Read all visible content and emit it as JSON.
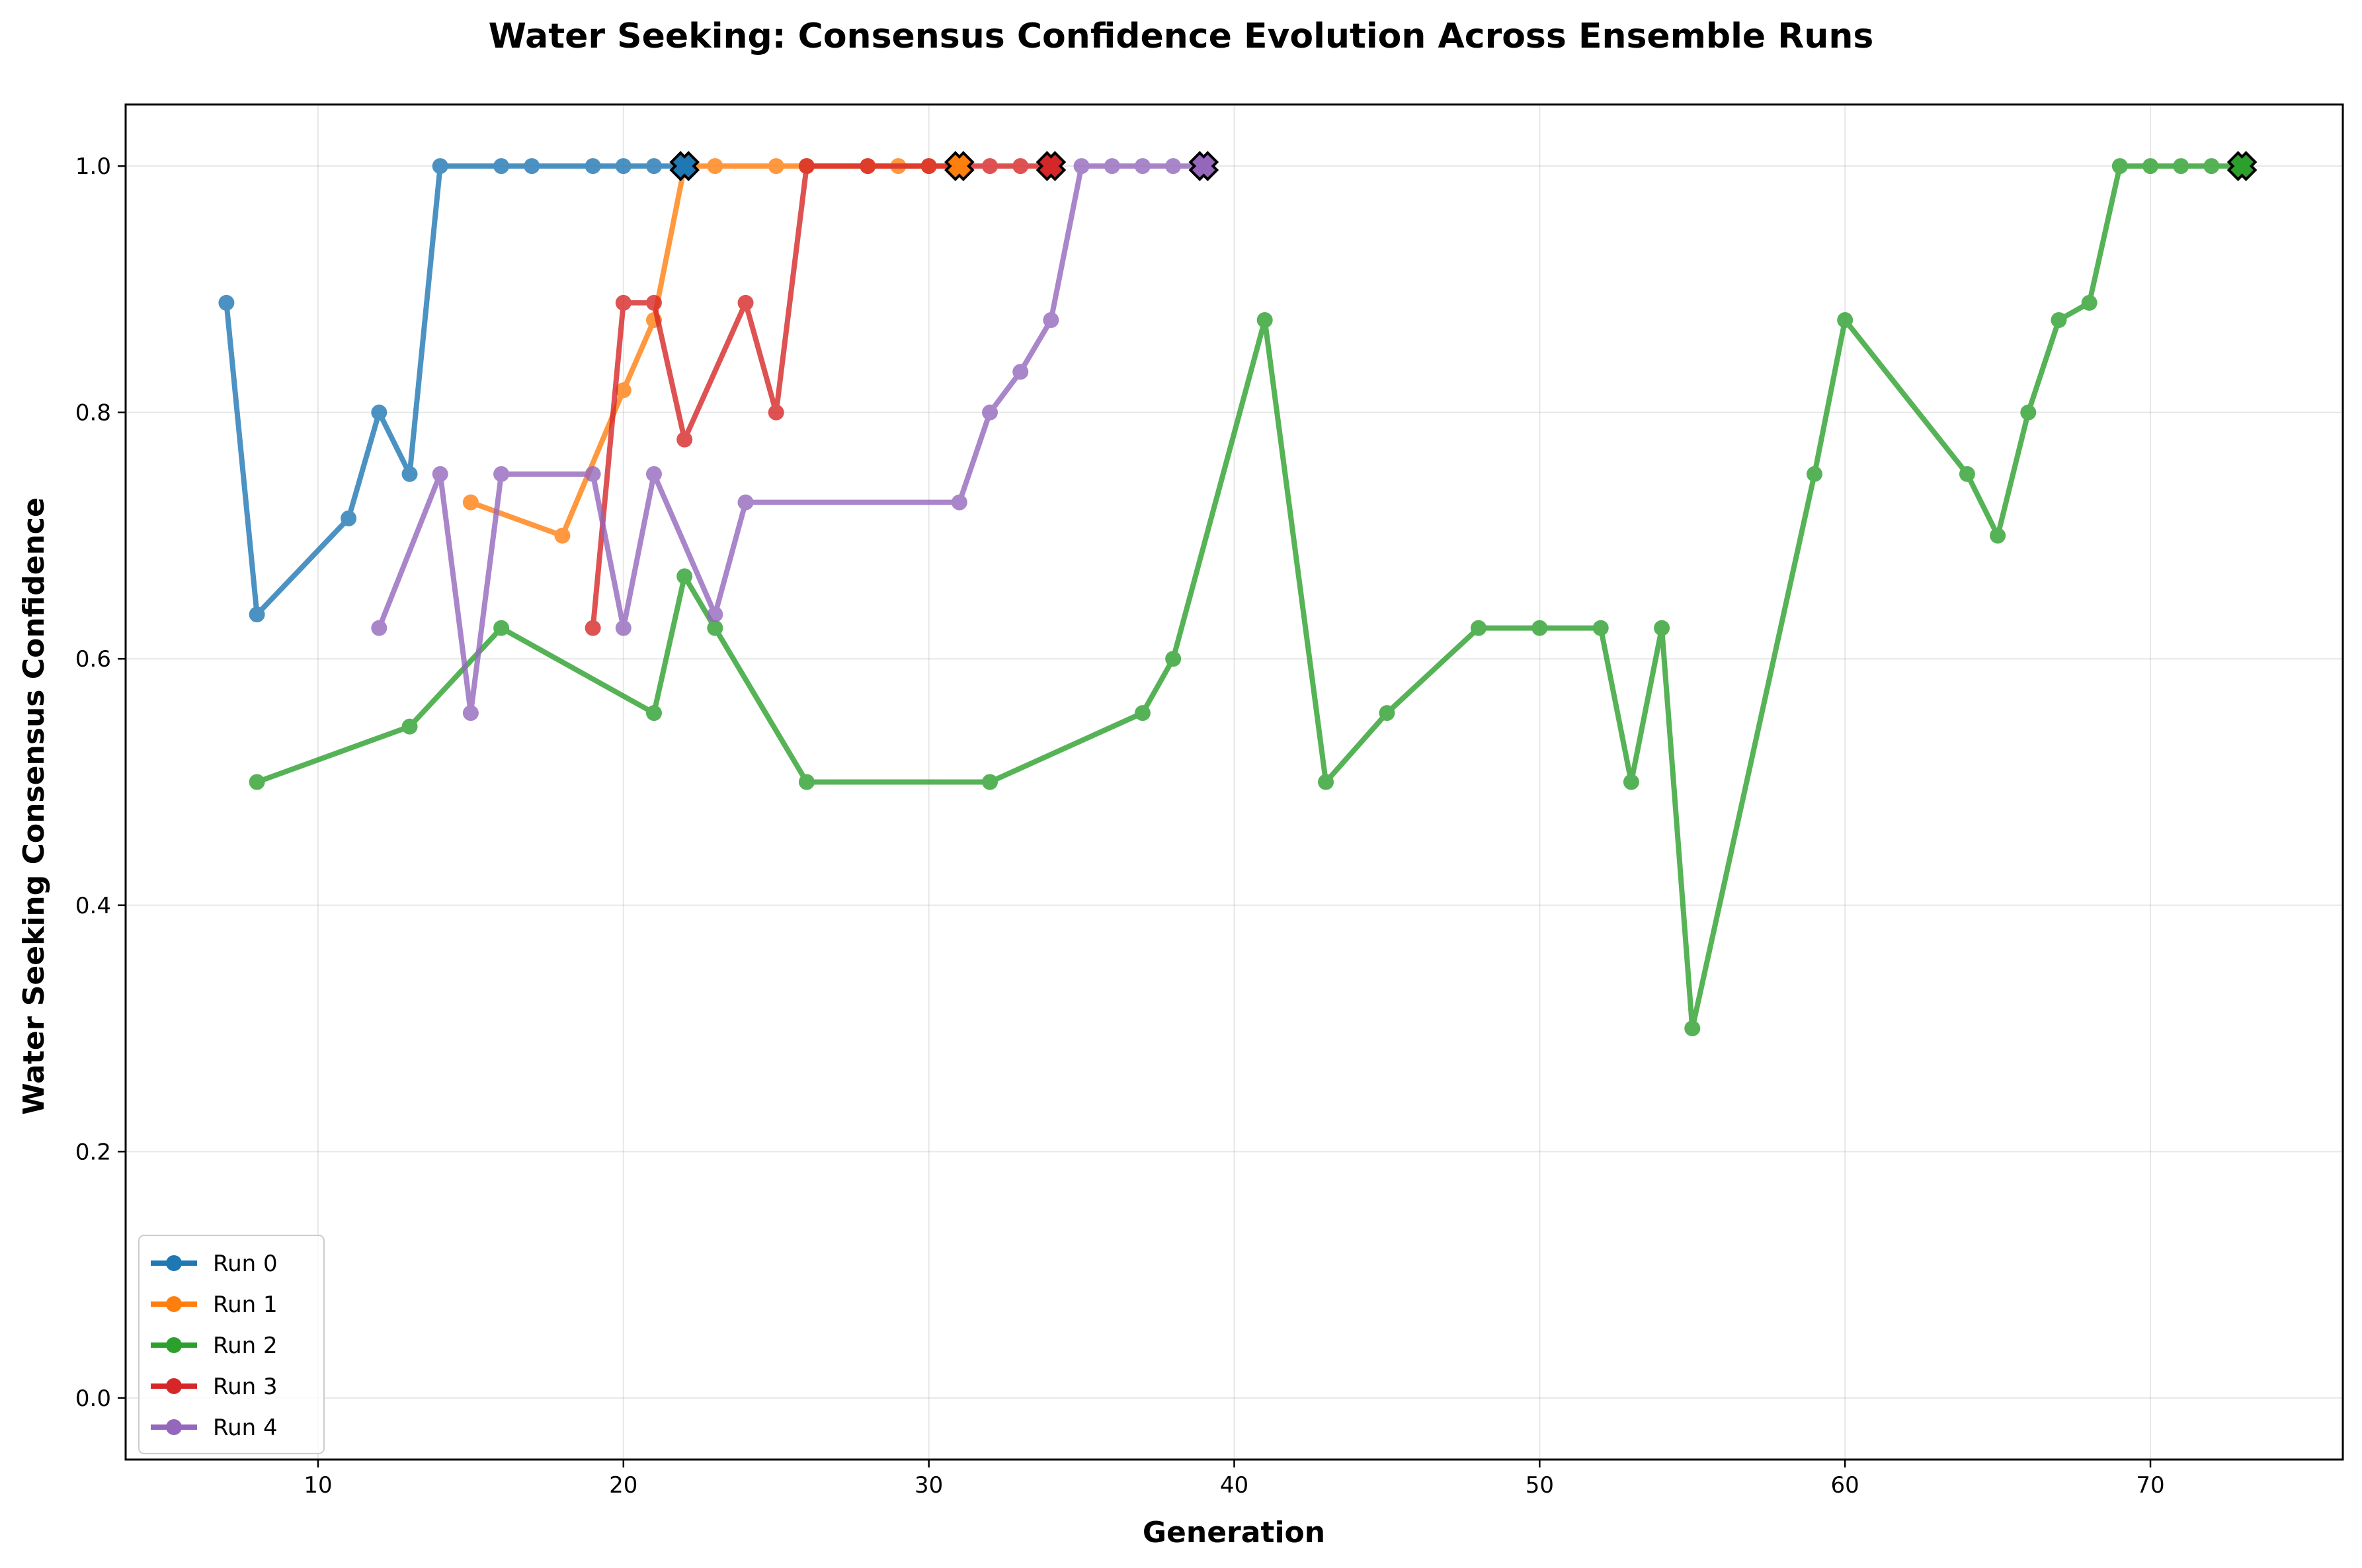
{
  "chart_data": {
    "type": "line",
    "title": "Water Seeking: Consensus Confidence Evolution Across Ensemble Runs",
    "xlabel": "Generation",
    "ylabel": "Water Seeking Consensus Confidence",
    "xlim": [
      3.7,
      76.3
    ],
    "ylim": [
      -0.05,
      1.05
    ],
    "xticks": [
      10,
      20,
      30,
      40,
      50,
      60,
      70
    ],
    "yticks": [
      0.0,
      0.2,
      0.4,
      0.6,
      0.8,
      1.0
    ],
    "xtick_labels": [
      "10",
      "20",
      "30",
      "40",
      "50",
      "60",
      "70"
    ],
    "ytick_labels": [
      "0.0",
      "0.2",
      "0.4",
      "0.6",
      "0.8",
      "1.0"
    ],
    "grid": true,
    "legend_position": "bottom-left",
    "series": [
      {
        "name": "Run 0",
        "color": "#1f77b4",
        "x": [
          7,
          8,
          11,
          12,
          13,
          14,
          16,
          17,
          19,
          20,
          21,
          22
        ],
        "y": [
          0.889,
          0.636,
          0.714,
          0.8,
          0.75,
          1.0,
          1.0,
          1.0,
          1.0,
          1.0,
          1.0,
          1.0
        ],
        "final": [
          22,
          1.0
        ]
      },
      {
        "name": "Run 1",
        "color": "#ff7f0e",
        "x": [
          15,
          18,
          20,
          21,
          22,
          23,
          25,
          26,
          28,
          29,
          30,
          31
        ],
        "y": [
          0.727,
          0.7,
          0.818,
          0.875,
          1.0,
          1.0,
          1.0,
          1.0,
          1.0,
          1.0,
          1.0,
          1.0
        ],
        "final": [
          31,
          1.0
        ]
      },
      {
        "name": "Run 2",
        "color": "#2ca02c",
        "x": [
          8,
          13,
          16,
          21,
          22,
          23,
          26,
          32,
          37,
          38,
          41,
          43,
          45,
          48,
          50,
          52,
          53,
          54,
          55,
          59,
          60,
          64,
          65,
          66,
          67,
          68,
          69,
          70,
          71,
          72,
          73
        ],
        "y": [
          0.5,
          0.545,
          0.625,
          0.556,
          0.667,
          0.625,
          0.5,
          0.5,
          0.556,
          0.6,
          0.875,
          0.5,
          0.556,
          0.625,
          0.625,
          0.625,
          0.5,
          0.625,
          0.3,
          0.75,
          0.875,
          0.75,
          0.7,
          0.8,
          0.875,
          0.889,
          1.0,
          1.0,
          1.0,
          1.0,
          1.0
        ],
        "final": [
          73,
          1.0
        ]
      },
      {
        "name": "Run 3",
        "color": "#d62728",
        "x": [
          19,
          20,
          21,
          22,
          24,
          25,
          26,
          28,
          30,
          32,
          33,
          34
        ],
        "y": [
          0.625,
          0.889,
          0.889,
          0.778,
          0.889,
          0.8,
          1.0,
          1.0,
          1.0,
          1.0,
          1.0,
          1.0
        ],
        "final": [
          34,
          1.0
        ]
      },
      {
        "name": "Run 4",
        "color": "#9467bd",
        "x": [
          12,
          14,
          15,
          16,
          19,
          20,
          21,
          23,
          24,
          31,
          32,
          33,
          34,
          35,
          36,
          37,
          38,
          39
        ],
        "y": [
          0.625,
          0.75,
          0.556,
          0.75,
          0.75,
          0.625,
          0.75,
          0.636,
          0.727,
          0.727,
          0.8,
          0.833,
          0.875,
          1.0,
          1.0,
          1.0,
          1.0,
          1.0
        ],
        "final": [
          39,
          1.0
        ]
      }
    ]
  }
}
